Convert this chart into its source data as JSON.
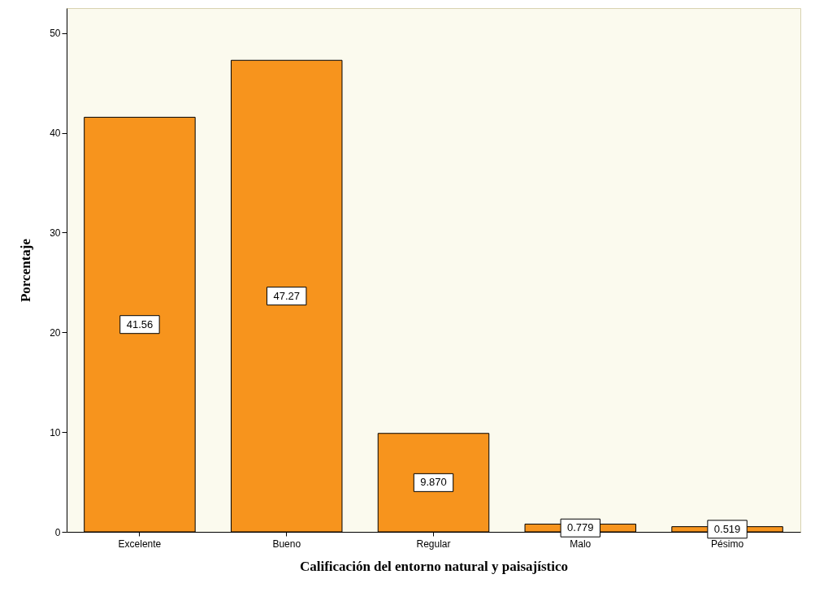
{
  "chart_data": {
    "type": "bar",
    "xlabel": "Calificación del entorno natural y paisajístico",
    "ylabel": "Porcentaje",
    "categories": [
      "Excelente",
      "Bueno",
      "Regular",
      "Malo",
      "Pésimo"
    ],
    "values": [
      41.56,
      47.27,
      9.87,
      0.779,
      0.519
    ],
    "value_labels": [
      "41.56",
      "47.27",
      "9.870",
      "0.779",
      "0.519"
    ],
    "color": "#f7941d",
    "ylim": [
      0,
      52.5
    ],
    "yticks": [
      0,
      10,
      20,
      30,
      40,
      50
    ]
  }
}
